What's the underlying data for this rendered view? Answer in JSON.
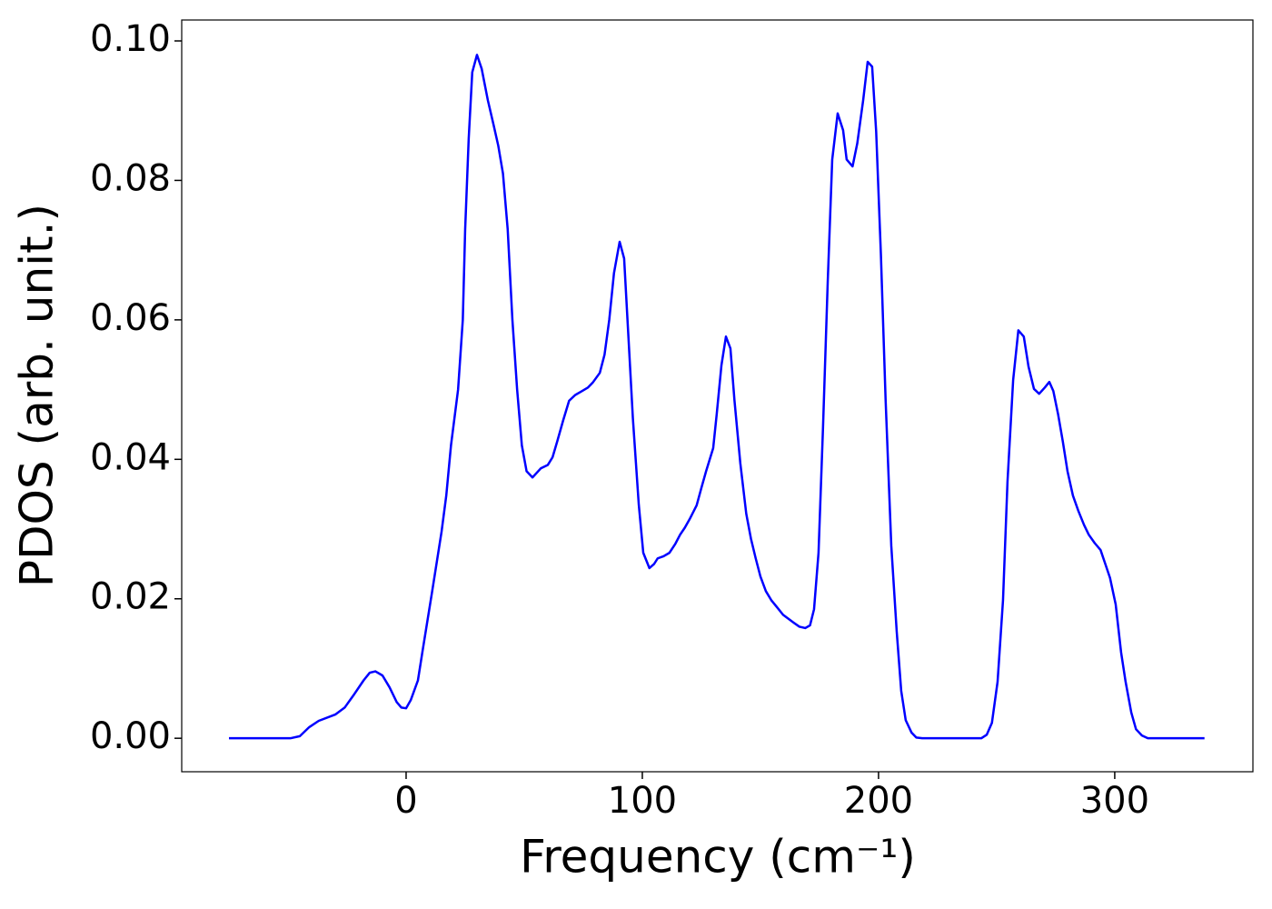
{
  "chart_data": {
    "type": "line",
    "xlabel": "Frequency (cm⁻¹)",
    "ylabel": "PDOS (arb. unit.)",
    "xlim": [
      -95,
      358.5
    ],
    "ylim": [
      -0.0048,
      0.103
    ],
    "xticks": [
      0,
      100,
      200,
      300
    ],
    "yticks": [
      {
        "value": 0,
        "label": "0.00"
      },
      {
        "value": 0.02,
        "label": "0.02"
      },
      {
        "value": 0.04,
        "label": "0.04"
      },
      {
        "value": 0.06,
        "label": "0.06"
      },
      {
        "value": 0.08,
        "label": "0.08"
      },
      {
        "value": 0.1,
        "label": "0.10"
      }
    ],
    "grid": false,
    "series": [
      {
        "color": "#0000ff",
        "x": [
          -75,
          -49,
          -45,
          -41,
          -37,
          -30,
          -26,
          -22,
          -18,
          -15.4,
          -13,
          -10,
          -7,
          -4,
          -2,
          0,
          2,
          5,
          7,
          11,
          15,
          17,
          19,
          22,
          24,
          25,
          26.5,
          28,
          30,
          32,
          34.6,
          37,
          39,
          41,
          43,
          45,
          47,
          49,
          51,
          53.5,
          57,
          60,
          62,
          64,
          66.5,
          69,
          71.5,
          74,
          77,
          79,
          82,
          84,
          86,
          88,
          90.4,
          92.3,
          94,
          96,
          98.5,
          100.4,
          103,
          105,
          106.5,
          109,
          111.5,
          114,
          116,
          118,
          120,
          123,
          125,
          127,
          130,
          131.5,
          133.5,
          135.4,
          137.3,
          139,
          141.5,
          144,
          146,
          148,
          150,
          152.3,
          154.6,
          157,
          159.6,
          162,
          164,
          166.5,
          169,
          171,
          172.7,
          174.6,
          176.5,
          178.5,
          180.4,
          182.7,
          185,
          186.5,
          189,
          191,
          193.5,
          195.4,
          197.3,
          199,
          201,
          203,
          205.4,
          207.7,
          209.6,
          211.5,
          214,
          216,
          218.5,
          243.5,
          245.8,
          248,
          250.4,
          252.7,
          254.6,
          257,
          259.2,
          261.5,
          263.5,
          265.8,
          268,
          270.4,
          272.3,
          274,
          276,
          278,
          280,
          282.3,
          284.6,
          287,
          289,
          291.5,
          294,
          296,
          298,
          300.4,
          302.7,
          304.6,
          307,
          309,
          311.5,
          314,
          338
        ],
        "values": [
          0,
          0,
          0.0003,
          0.0016,
          0.0025,
          0.0034,
          0.0044,
          0.0063,
          0.0083,
          0.0094,
          0.0096,
          0.009,
          0.0073,
          0.0052,
          0.0044,
          0.0043,
          0.0055,
          0.0083,
          0.0126,
          0.021,
          0.0296,
          0.0348,
          0.042,
          0.05,
          0.06,
          0.073,
          0.086,
          0.0955,
          0.098,
          0.096,
          0.0915,
          0.088,
          0.085,
          0.081,
          0.073,
          0.06,
          0.05,
          0.042,
          0.0383,
          0.0374,
          0.0387,
          0.0392,
          0.0403,
          0.0426,
          0.0456,
          0.0484,
          0.0492,
          0.0497,
          0.0503,
          0.051,
          0.0524,
          0.055,
          0.06,
          0.0667,
          0.0712,
          0.0688,
          0.0583,
          0.0459,
          0.0335,
          0.0266,
          0.0244,
          0.025,
          0.0258,
          0.0261,
          0.0266,
          0.0279,
          0.0292,
          0.0302,
          0.0314,
          0.0334,
          0.0359,
          0.0383,
          0.0416,
          0.0465,
          0.0535,
          0.0576,
          0.0559,
          0.0485,
          0.0394,
          0.0322,
          0.0286,
          0.0258,
          0.0232,
          0.0211,
          0.0198,
          0.0188,
          0.0177,
          0.0171,
          0.0166,
          0.016,
          0.0158,
          0.0162,
          0.0185,
          0.0266,
          0.0446,
          0.0655,
          0.083,
          0.0896,
          0.0872,
          0.083,
          0.082,
          0.0853,
          0.0915,
          0.097,
          0.0963,
          0.087,
          0.0694,
          0.0485,
          0.0276,
          0.0153,
          0.0068,
          0.0026,
          0.0008,
          0.0001,
          0,
          0,
          0.0005,
          0.0022,
          0.0081,
          0.0198,
          0.0368,
          0.0514,
          0.0585,
          0.0576,
          0.0533,
          0.0501,
          0.0494,
          0.0503,
          0.0511,
          0.0498,
          0.0465,
          0.0426,
          0.0383,
          0.0348,
          0.0326,
          0.0306,
          0.0292,
          0.028,
          0.027,
          0.025,
          0.023,
          0.0192,
          0.0123,
          0.0081,
          0.0037,
          0.0013,
          0.0004,
          0,
          0
        ]
      }
    ]
  }
}
